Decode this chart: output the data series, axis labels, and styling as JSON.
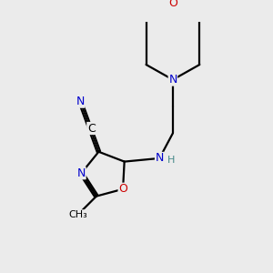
{
  "bg_color": "#ebebeb",
  "bond_color": "#000000",
  "bond_width": 1.6,
  "atom_colors": {
    "C": "#000000",
    "N": "#0000cc",
    "O": "#cc0000",
    "H": "#448888"
  },
  "figsize": [
    3.0,
    3.0
  ],
  "dpi": 100
}
